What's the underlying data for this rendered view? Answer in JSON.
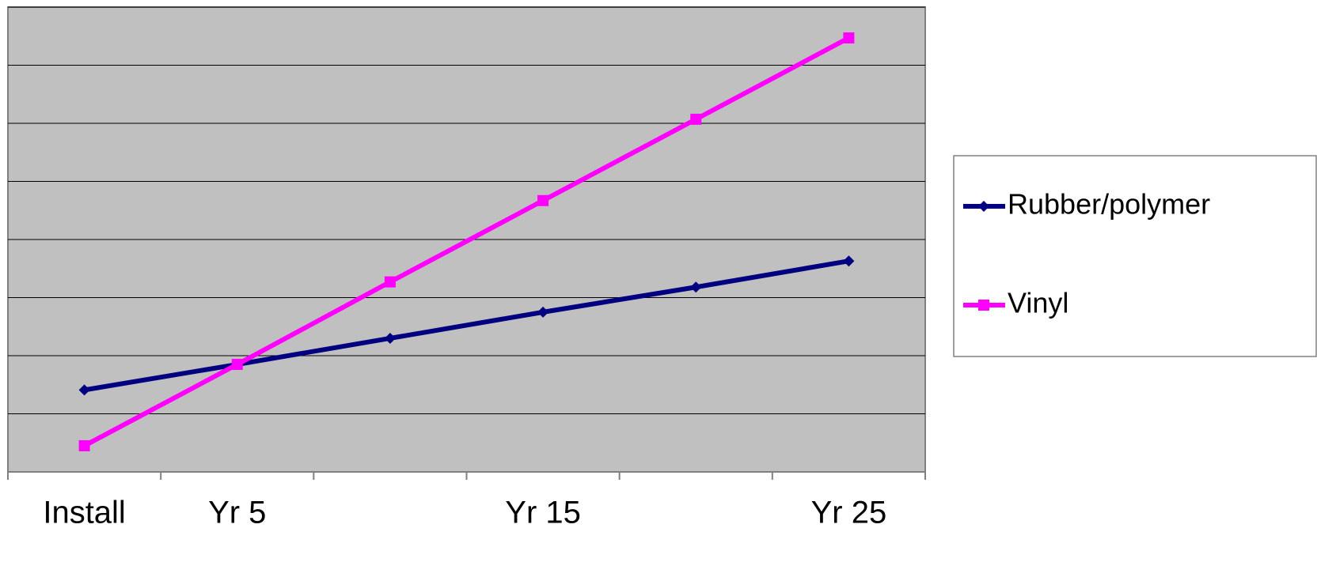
{
  "chart_data": {
    "type": "line",
    "categories": [
      "Install",
      "Yr 5",
      null,
      "Yr 15",
      null,
      "Yr 25"
    ],
    "series": [
      {
        "name": "Rubber/polymer",
        "color": "#000080",
        "marker": "diamond",
        "values": [
          1.41,
          1.85,
          2.3,
          2.75,
          3.18,
          3.63
        ]
      },
      {
        "name": "Vinyl",
        "color": "#ff00ff",
        "marker": "square",
        "values": [
          0.45,
          1.85,
          3.27,
          4.67,
          6.07,
          7.47
        ]
      }
    ],
    "ylim": [
      0,
      8
    ],
    "yticks": [
      0,
      1,
      2,
      3,
      4,
      5,
      6,
      7,
      8
    ],
    "grid": true,
    "plot_background": "#c0c0c0",
    "legend": "right"
  }
}
